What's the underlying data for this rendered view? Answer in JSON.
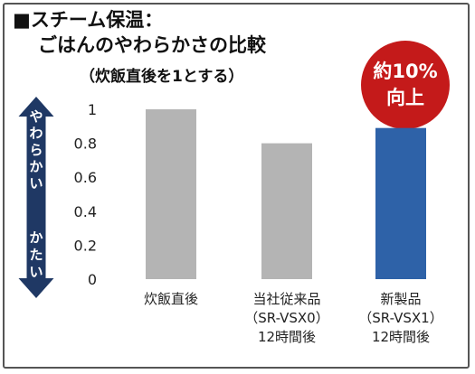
{
  "heading": {
    "line1": "■スチーム保温：",
    "line2": "ごはんのやわらかさの比較",
    "subtitle": "（炊飯直後を1とする）"
  },
  "badge": {
    "line1": "約10%",
    "line2": "向上",
    "color": "#c41a1a"
  },
  "arrow": {
    "top_label": "やわらかい",
    "bottom_label": "かたい",
    "color": "#1f3864"
  },
  "chart_data": {
    "type": "bar",
    "categories": [
      {
        "lines": [
          "炊飯直後"
        ],
        "value": 1.0,
        "color": "#b4b4b4"
      },
      {
        "lines": [
          "当社従来品",
          "（SR-VSX0）",
          "12時間後"
        ],
        "value": 0.8,
        "color": "#b4b4b4"
      },
      {
        "lines": [
          "新製品",
          "（SR-VSX1）",
          "12時間後"
        ],
        "value": 0.89,
        "color": "#2e62a8"
      }
    ],
    "ylim": [
      0,
      1
    ],
    "yticks": [
      "0",
      "0.2",
      "0.4",
      "0.6",
      "0.8",
      "1"
    ],
    "grid": false
  }
}
